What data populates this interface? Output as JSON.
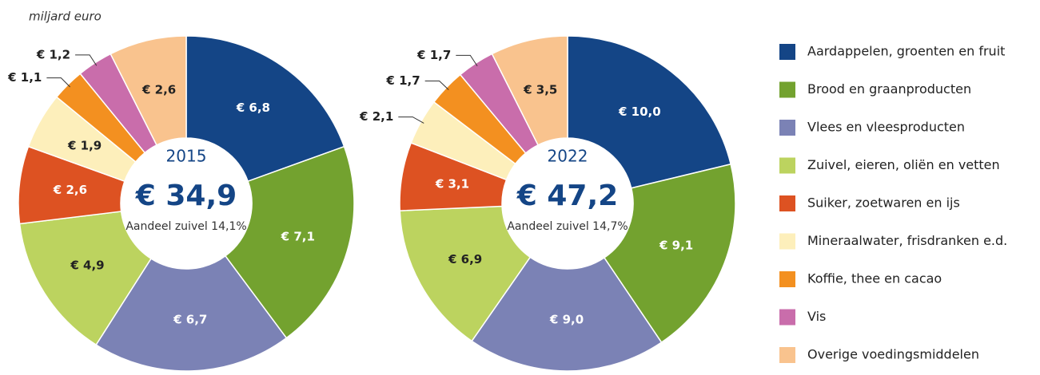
{
  "chart_data": [
    {
      "type": "donut",
      "subtitle": "miljard euro",
      "year": "2015",
      "total_label": "€ 34,9",
      "share_label": "Aandeel zuivel 14,1%",
      "categories": [
        "Aardappelen, groenten en fruit",
        "Brood en graanproducten",
        "Vlees en vleesproducten",
        "Zuivel, eieren, oliën en vetten",
        "Suiker, zoetwaren en ijs",
        "Mineraalwater, frisdranken e.d.",
        "Koffie, thee en cacao",
        "Vis",
        "Overige voedingsmiddelen"
      ],
      "colors": [
        "#144586",
        "#73a22f",
        "#7b82b5",
        "#bcd35f",
        "#dd5222",
        "#fdefbb",
        "#f39020",
        "#c96dab",
        "#f9c38e"
      ],
      "values": [
        6.8,
        7.1,
        6.7,
        4.9,
        2.6,
        1.9,
        1.1,
        1.2,
        2.6
      ],
      "value_labels": [
        "€ 6,8",
        "€ 7,1",
        "€ 6,7",
        "€ 4,9",
        "€ 2,6",
        "€ 1,9",
        "€ 1,1",
        "€ 1,2",
        "€ 2,6"
      ]
    },
    {
      "type": "donut",
      "year": "2022",
      "total_label": "€ 47,2",
      "share_label": "Aandeel zuivel 14,7%",
      "categories": [
        "Aardappelen, groenten en fruit",
        "Brood en graanproducten",
        "Vlees en vleesproducten",
        "Zuivel, eieren, oliën en vetten",
        "Suiker, zoetwaren en ijs",
        "Mineraalwater, frisdranken e.d.",
        "Koffie, thee en cacao",
        "Vis",
        "Overige voedingsmiddelen"
      ],
      "colors": [
        "#144586",
        "#73a22f",
        "#7b82b5",
        "#bcd35f",
        "#dd5222",
        "#fdefbb",
        "#f39020",
        "#c96dab",
        "#f9c38e"
      ],
      "values": [
        10.0,
        9.1,
        9.0,
        6.9,
        3.1,
        2.1,
        1.7,
        1.7,
        3.5
      ],
      "value_labels": [
        "€ 10,0",
        "€ 9,1",
        "€ 9,0",
        "€ 6,9",
        "€ 3,1",
        "€ 2,1",
        "€ 1,7",
        "€ 1,7",
        "€ 3,5"
      ]
    }
  ]
}
